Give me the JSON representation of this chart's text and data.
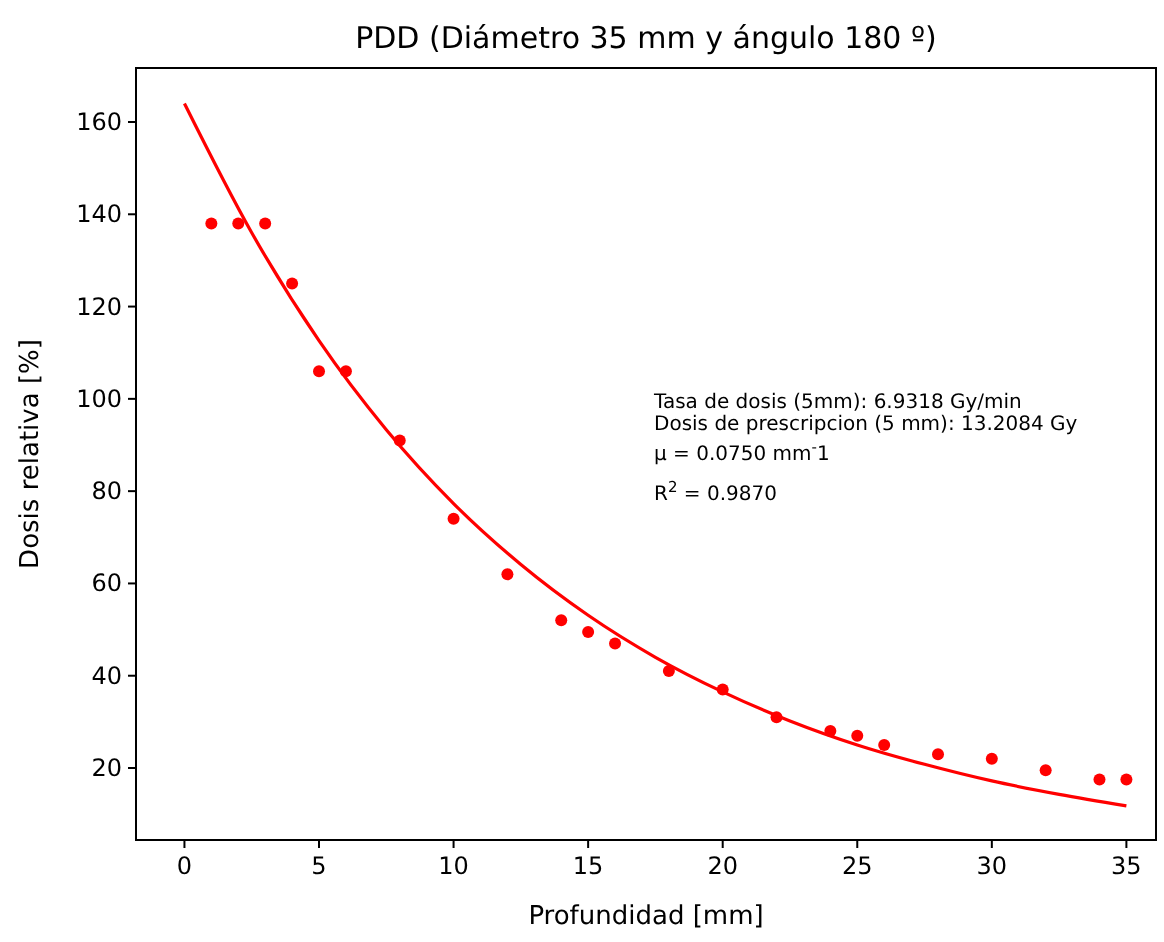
{
  "chart_data": {
    "type": "scatter",
    "title": "PDD (Diámetro 35 mm y ángulo 180 º)",
    "xlabel": "Profundidad  [mm]",
    "ylabel": "Dosis relativa  [%]",
    "xlim": [
      -1.8,
      36.1
    ],
    "ylim": [
      4.4,
      171.7
    ],
    "xticks": [
      0,
      5,
      10,
      15,
      20,
      25,
      30,
      35
    ],
    "yticks": [
      20,
      40,
      60,
      80,
      100,
      120,
      140,
      160
    ],
    "grid": false,
    "marker": "circle",
    "series": [
      {
        "color": "#ff0000",
        "x": [
          1,
          2,
          3,
          4,
          5,
          6,
          8,
          10,
          12,
          14,
          15,
          16,
          18,
          20,
          22,
          24,
          25,
          26,
          28,
          30,
          32,
          34,
          35
        ],
        "values": [
          138,
          138,
          138,
          125,
          106,
          106,
          91,
          74,
          62,
          52,
          49.5,
          47,
          41,
          37,
          31,
          28,
          27,
          25,
          23,
          22,
          19.5,
          17.5,
          17.5
        ]
      },
      {
        "type": "line",
        "color": "#ff0000",
        "marker": "none",
        "x": [
          0,
          2.5,
          5,
          7.5,
          10,
          12.5,
          15,
          17.5,
          20,
          22.5,
          25,
          27.5,
          30,
          32.5,
          35
        ],
        "values": [
          164,
          136,
          112.6,
          93.3,
          77.3,
          64.1,
          53.1,
          44,
          36.5,
          30.2,
          25,
          20.8,
          17.2,
          14.3,
          11.8
        ]
      }
    ],
    "annotations": [
      "Tasa de dosis (5mm): 6.9318 Gy/min",
      "Dosis de prescripcion (5 mm): 13.2084 Gy",
      "μ = 0.0750 mm$^{-}$1",
      "R$^{2}$ = 0.9870"
    ]
  }
}
